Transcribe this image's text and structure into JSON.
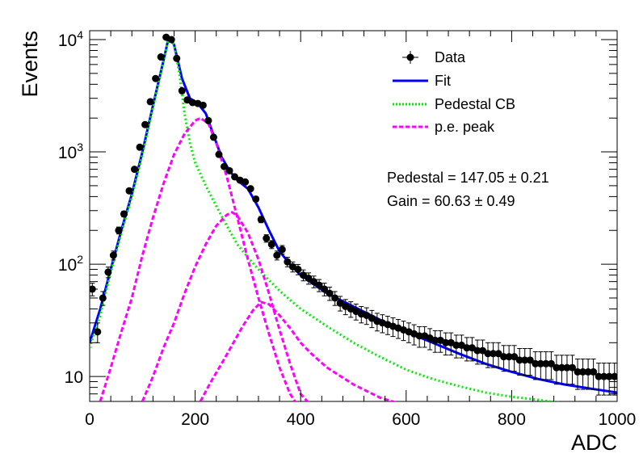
{
  "chart_data": {
    "type": "scatter",
    "title": "",
    "xlabel": "ADC",
    "ylabel": "Events",
    "xlim": [
      0,
      1000
    ],
    "ylim": [
      6,
      12000
    ],
    "yscale": "log",
    "grid": false,
    "legend_position": "top-right",
    "x_ticks": [
      "0",
      "200",
      "400",
      "600",
      "800",
      "1000"
    ],
    "y_ticks": [
      {
        "base": "10",
        "exp": ""
      },
      {
        "base": "10",
        "exp": "2"
      },
      {
        "base": "10",
        "exp": "3"
      },
      {
        "base": "10",
        "exp": "4"
      }
    ],
    "legend": [
      {
        "label": "Data",
        "style": "marker",
        "color": "#000000"
      },
      {
        "label": "Fit",
        "style": "solid",
        "color": "#0000ff"
      },
      {
        "label": "Pedestal CB",
        "style": "dotted",
        "color": "#00ee00"
      },
      {
        "label": "p.e. peak",
        "style": "dashed",
        "color": "#ff00ff"
      }
    ],
    "annotations": [
      {
        "label": "Pedestal",
        "value": "147.05",
        "error": "0.21"
      },
      {
        "label": "Gain",
        "value": "60.63",
        "error": "0.49"
      }
    ],
    "series": [
      {
        "name": "Data",
        "kind": "points",
        "color": "#000000",
        "points": [
          [
            5,
            60
          ],
          [
            15,
            25
          ],
          [
            25,
            50
          ],
          [
            35,
            85
          ],
          [
            45,
            120
          ],
          [
            55,
            200
          ],
          [
            65,
            280
          ],
          [
            75,
            450
          ],
          [
            85,
            700
          ],
          [
            95,
            1100
          ],
          [
            105,
            1750
          ],
          [
            115,
            2800
          ],
          [
            125,
            4500
          ],
          [
            135,
            7000
          ],
          [
            145,
            10500
          ],
          [
            155,
            10000
          ],
          [
            165,
            6800
          ],
          [
            175,
            3500
          ],
          [
            185,
            2900
          ],
          [
            195,
            2750
          ],
          [
            205,
            2700
          ],
          [
            215,
            2600
          ],
          [
            225,
            1900
          ],
          [
            235,
            1350
          ],
          [
            245,
            950
          ],
          [
            255,
            740
          ],
          [
            265,
            680
          ],
          [
            275,
            600
          ],
          [
            285,
            560
          ],
          [
            295,
            540
          ],
          [
            305,
            470
          ],
          [
            315,
            380
          ],
          [
            325,
            250
          ],
          [
            335,
            170
          ],
          [
            345,
            150
          ],
          [
            355,
            120
          ],
          [
            365,
            135
          ],
          [
            375,
            105
          ],
          [
            385,
            95
          ],
          [
            395,
            90
          ],
          [
            405,
            80
          ],
          [
            415,
            75
          ],
          [
            425,
            70
          ],
          [
            435,
            65
          ],
          [
            445,
            60
          ],
          [
            455,
            55
          ],
          [
            465,
            50
          ],
          [
            475,
            45
          ],
          [
            485,
            42
          ],
          [
            495,
            40
          ],
          [
            505,
            38
          ],
          [
            515,
            36
          ],
          [
            525,
            35
          ],
          [
            535,
            33
          ],
          [
            545,
            31
          ],
          [
            555,
            30
          ],
          [
            565,
            29
          ],
          [
            575,
            28
          ],
          [
            585,
            27
          ],
          [
            595,
            26
          ],
          [
            605,
            25
          ],
          [
            615,
            24
          ],
          [
            625,
            23
          ],
          [
            635,
            23
          ],
          [
            645,
            22
          ],
          [
            655,
            21
          ],
          [
            665,
            21
          ],
          [
            675,
            20
          ],
          [
            685,
            20
          ],
          [
            695,
            19
          ],
          [
            705,
            19
          ],
          [
            715,
            18
          ],
          [
            725,
            18
          ],
          [
            735,
            17
          ],
          [
            745,
            17
          ],
          [
            755,
            16
          ],
          [
            765,
            16
          ],
          [
            775,
            16
          ],
          [
            785,
            15
          ],
          [
            795,
            15
          ],
          [
            805,
            15
          ],
          [
            815,
            14
          ],
          [
            825,
            14
          ],
          [
            835,
            14
          ],
          [
            845,
            13
          ],
          [
            855,
            13
          ],
          [
            865,
            13
          ],
          [
            875,
            13
          ],
          [
            885,
            12
          ],
          [
            895,
            12
          ],
          [
            905,
            12
          ],
          [
            915,
            12
          ],
          [
            925,
            11
          ],
          [
            935,
            11
          ],
          [
            945,
            11
          ],
          [
            955,
            11
          ],
          [
            965,
            10
          ],
          [
            975,
            10
          ],
          [
            985,
            10
          ],
          [
            995,
            10
          ]
        ]
      },
      {
        "name": "Fit",
        "kind": "line",
        "color": "#0000ff",
        "points": [
          [
            0,
            20
          ],
          [
            20,
            40
          ],
          [
            40,
            90
          ],
          [
            60,
            200
          ],
          [
            80,
            420
          ],
          [
            100,
            1000
          ],
          [
            120,
            2600
          ],
          [
            140,
            6500
          ],
          [
            150,
            10500
          ],
          [
            160,
            9000
          ],
          [
            175,
            4500
          ],
          [
            190,
            3000
          ],
          [
            205,
            2700
          ],
          [
            220,
            2200
          ],
          [
            235,
            1400
          ],
          [
            250,
            900
          ],
          [
            265,
            680
          ],
          [
            280,
            560
          ],
          [
            300,
            470
          ],
          [
            320,
            320
          ],
          [
            340,
            200
          ],
          [
            360,
            130
          ],
          [
            380,
            100
          ],
          [
            400,
            80
          ],
          [
            450,
            55
          ],
          [
            500,
            42
          ],
          [
            550,
            32
          ],
          [
            600,
            25
          ],
          [
            650,
            20
          ],
          [
            700,
            16
          ],
          [
            750,
            13
          ],
          [
            800,
            11
          ],
          [
            850,
            9.5
          ],
          [
            900,
            8.5
          ],
          [
            950,
            7.8
          ],
          [
            1000,
            7.2
          ]
        ]
      },
      {
        "name": "Pedestal CB",
        "kind": "line",
        "color": "#00ee00",
        "points": [
          [
            0,
            18
          ],
          [
            20,
            35
          ],
          [
            40,
            85
          ],
          [
            60,
            190
          ],
          [
            80,
            400
          ],
          [
            100,
            950
          ],
          [
            120,
            2500
          ],
          [
            140,
            6400
          ],
          [
            150,
            10400
          ],
          [
            160,
            9000
          ],
          [
            170,
            5000
          ],
          [
            180,
            2200
          ],
          [
            190,
            1200
          ],
          [
            200,
            800
          ],
          [
            220,
            500
          ],
          [
            240,
            330
          ],
          [
            260,
            220
          ],
          [
            280,
            150
          ],
          [
            300,
            115
          ],
          [
            320,
            90
          ],
          [
            340,
            72
          ],
          [
            360,
            58
          ],
          [
            380,
            48
          ],
          [
            400,
            40
          ],
          [
            450,
            28
          ],
          [
            500,
            20
          ],
          [
            550,
            15
          ],
          [
            600,
            11.5
          ],
          [
            650,
            9.5
          ],
          [
            700,
            8.2
          ],
          [
            750,
            7.2
          ],
          [
            800,
            6.6
          ],
          [
            850,
            6.2
          ],
          [
            895,
            5.8
          ]
        ]
      },
      {
        "name": "p.e. peak 1",
        "kind": "line",
        "color": "#ff00ff",
        "points": [
          [
            20,
            6
          ],
          [
            40,
            12
          ],
          [
            60,
            25
          ],
          [
            80,
            50
          ],
          [
            100,
            120
          ],
          [
            120,
            260
          ],
          [
            140,
            520
          ],
          [
            160,
            950
          ],
          [
            180,
            1450
          ],
          [
            200,
            1900
          ],
          [
            210,
            2000
          ],
          [
            225,
            1800
          ],
          [
            240,
            1200
          ],
          [
            260,
            600
          ],
          [
            280,
            260
          ],
          [
            300,
            110
          ],
          [
            320,
            50
          ],
          [
            340,
            24
          ],
          [
            360,
            12
          ],
          [
            380,
            7
          ],
          [
            395,
            5.5
          ]
        ]
      },
      {
        "name": "p.e. peak 2",
        "kind": "line",
        "color": "#ff00ff",
        "points": [
          [
            100,
            6
          ],
          [
            120,
            10
          ],
          [
            140,
            18
          ],
          [
            160,
            30
          ],
          [
            180,
            55
          ],
          [
            200,
            95
          ],
          [
            220,
            150
          ],
          [
            240,
            220
          ],
          [
            260,
            275
          ],
          [
            270,
            290
          ],
          [
            280,
            270
          ],
          [
            300,
            190
          ],
          [
            320,
            110
          ],
          [
            340,
            55
          ],
          [
            360,
            26
          ],
          [
            380,
            13
          ],
          [
            400,
            7
          ],
          [
            420,
            5.5
          ]
        ]
      },
      {
        "name": "p.e. peak 3",
        "kind": "line",
        "color": "#ff00ff",
        "points": [
          [
            210,
            6
          ],
          [
            230,
            9
          ],
          [
            250,
            13
          ],
          [
            270,
            19
          ],
          [
            290,
            28
          ],
          [
            310,
            39
          ],
          [
            325,
            46
          ],
          [
            340,
            44
          ],
          [
            360,
            35
          ],
          [
            380,
            27
          ],
          [
            400,
            20
          ],
          [
            420,
            16
          ],
          [
            450,
            12
          ],
          [
            500,
            8.5
          ],
          [
            550,
            6.5
          ],
          [
            600,
            5.5
          ]
        ]
      }
    ]
  }
}
